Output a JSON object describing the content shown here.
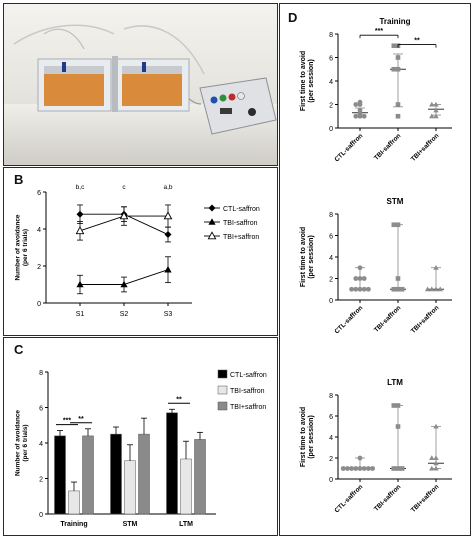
{
  "colors": {
    "black": "#000000",
    "dark": "#111111",
    "grey_dark": "#8a8a8a",
    "grey_light": "#e7e7e7",
    "scatter": "#8c8c8c",
    "frame": "#2b2b2b"
  },
  "panels": {
    "a": {
      "letter": "A"
    },
    "b": {
      "letter": "B"
    },
    "c": {
      "letter": "C"
    },
    "d": {
      "letter": "D"
    }
  },
  "chart_data": [
    {
      "id": "B",
      "type": "line",
      "ylabel": "Number of avoidance\n(per 6 trials)",
      "categories": [
        "S1",
        "S2",
        "S3"
      ],
      "ylim": [
        0,
        6
      ],
      "yticks": [
        0,
        2,
        4,
        6
      ],
      "series": [
        {
          "name": "CTL-saffron",
          "marker": "diamond",
          "values": [
            4.8,
            4.8,
            3.7
          ],
          "err": [
            0.5,
            0.4,
            0.4
          ]
        },
        {
          "name": "TBI-saffron",
          "marker": "triangle",
          "values": [
            1.0,
            1.0,
            1.8
          ],
          "err": [
            0.5,
            0.4,
            0.7
          ]
        },
        {
          "name": "TBI+saffron",
          "marker": "triangle-open",
          "values": [
            3.9,
            4.7,
            4.7
          ],
          "err": [
            0.5,
            0.5,
            0.6
          ]
        }
      ],
      "annotations": [
        "b,c",
        "c",
        "a,b"
      ],
      "legend": "right"
    },
    {
      "id": "C",
      "type": "bar",
      "ylabel": "Number of avoidance\n(per 6 trials)",
      "categories": [
        "Training",
        "STM",
        "LTM"
      ],
      "ylim": [
        0,
        8
      ],
      "yticks": [
        0,
        2,
        4,
        6,
        8
      ],
      "series": [
        {
          "name": "CTL-saffron",
          "values": [
            4.4,
            4.5,
            5.7
          ],
          "err": [
            0.3,
            0.4,
            0.2
          ]
        },
        {
          "name": "TBI-saffron",
          "values": [
            1.3,
            3.0,
            3.1
          ],
          "err": [
            0.5,
            0.9,
            1.0
          ]
        },
        {
          "name": "TBI+saffron",
          "values": [
            4.4,
            4.5,
            4.2
          ],
          "err": [
            0.4,
            0.9,
            0.4
          ]
        }
      ],
      "significance": [
        {
          "category": "Training",
          "label": "***",
          "between": [
            0,
            1
          ]
        },
        {
          "category": "Training",
          "label": "**",
          "between": [
            1,
            2
          ]
        },
        {
          "category": "LTM",
          "label": "**",
          "between": [
            0,
            1
          ]
        }
      ],
      "legend": "right"
    },
    {
      "id": "D-training",
      "type": "scatter",
      "title": "Training",
      "ylabel": "First time to avoid\n(per session)",
      "categories": [
        "CTL-saffron",
        "TBI-saffron",
        "TBI+saffron"
      ],
      "ylim": [
        0,
        8
      ],
      "yticks": [
        0,
        2,
        4,
        6,
        8
      ],
      "groups": [
        {
          "points": [
            1,
            1,
            1,
            1.2,
            1.5,
            2,
            2,
            2.2
          ],
          "mean": 1.3,
          "low": 1.0,
          "high": 1.7
        },
        {
          "points": [
            1,
            2,
            5,
            5,
            6,
            7,
            7
          ],
          "mean": 5.0,
          "low": 1.8,
          "high": 6.3
        },
        {
          "points": [
            1,
            1,
            1.5,
            2,
            2
          ],
          "mean": 1.6,
          "low": 1.1,
          "high": 2.0
        }
      ],
      "significance": [
        {
          "label": "***",
          "between": [
            0,
            1
          ]
        },
        {
          "label": "**",
          "between": [
            1,
            2
          ]
        }
      ]
    },
    {
      "id": "D-stm",
      "type": "scatter",
      "title": "STM",
      "ylabel": "First time to avoid\n(per session)",
      "categories": [
        "CTL-saffron",
        "TBI-saffron",
        "TBI+saffron"
      ],
      "ylim": [
        0,
        8
      ],
      "yticks": [
        0,
        2,
        4,
        6,
        8
      ],
      "groups": [
        {
          "points": [
            1,
            1,
            1,
            1,
            1,
            2,
            2,
            2,
            3
          ],
          "mean": 1.0,
          "low": 1.0,
          "high": 3.0
        },
        {
          "points": [
            1,
            1,
            1,
            2,
            7,
            7
          ],
          "mean": 1.0,
          "low": 1.0,
          "high": 7.0
        },
        {
          "points": [
            1,
            1,
            1,
            1,
            3
          ],
          "mean": 1.0,
          "low": 1.0,
          "high": 3.0
        }
      ]
    },
    {
      "id": "D-ltm",
      "type": "scatter",
      "title": "LTM",
      "ylabel": "First time to avoid\n(per session)",
      "categories": [
        "CTL-saffron",
        "TBI-saffron",
        "TBI+saffron"
      ],
      "ylim": [
        0,
        8
      ],
      "yticks": [
        0,
        2,
        4,
        6,
        8
      ],
      "groups": [
        {
          "points": [
            1,
            1,
            1,
            1,
            1,
            1,
            1,
            1,
            2
          ],
          "mean": 1.0,
          "low": 1.0,
          "high": 2.0
        },
        {
          "points": [
            1,
            1,
            1,
            5,
            7,
            7
          ],
          "mean": 1.0,
          "low": 1.0,
          "high": 7.0
        },
        {
          "points": [
            1,
            1,
            1.5,
            2,
            2,
            5
          ],
          "mean": 1.5,
          "low": 1.0,
          "high": 5.0
        }
      ]
    }
  ]
}
